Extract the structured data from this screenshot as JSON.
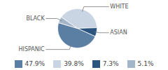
{
  "chart_data": {
    "type": "pie",
    "categories": [
      "HISPANIC",
      "WHITE",
      "ASIAN",
      "BLACK"
    ],
    "values": [
      47.9,
      39.8,
      7.3,
      5.1
    ],
    "value_labels": [
      "47.9%",
      "39.8%",
      "7.3%",
      "5.1%"
    ],
    "colors": [
      "#5b7ea3",
      "#c9d5e2",
      "#2b557e",
      "#a3b5c8"
    ],
    "legend": "bottom"
  }
}
